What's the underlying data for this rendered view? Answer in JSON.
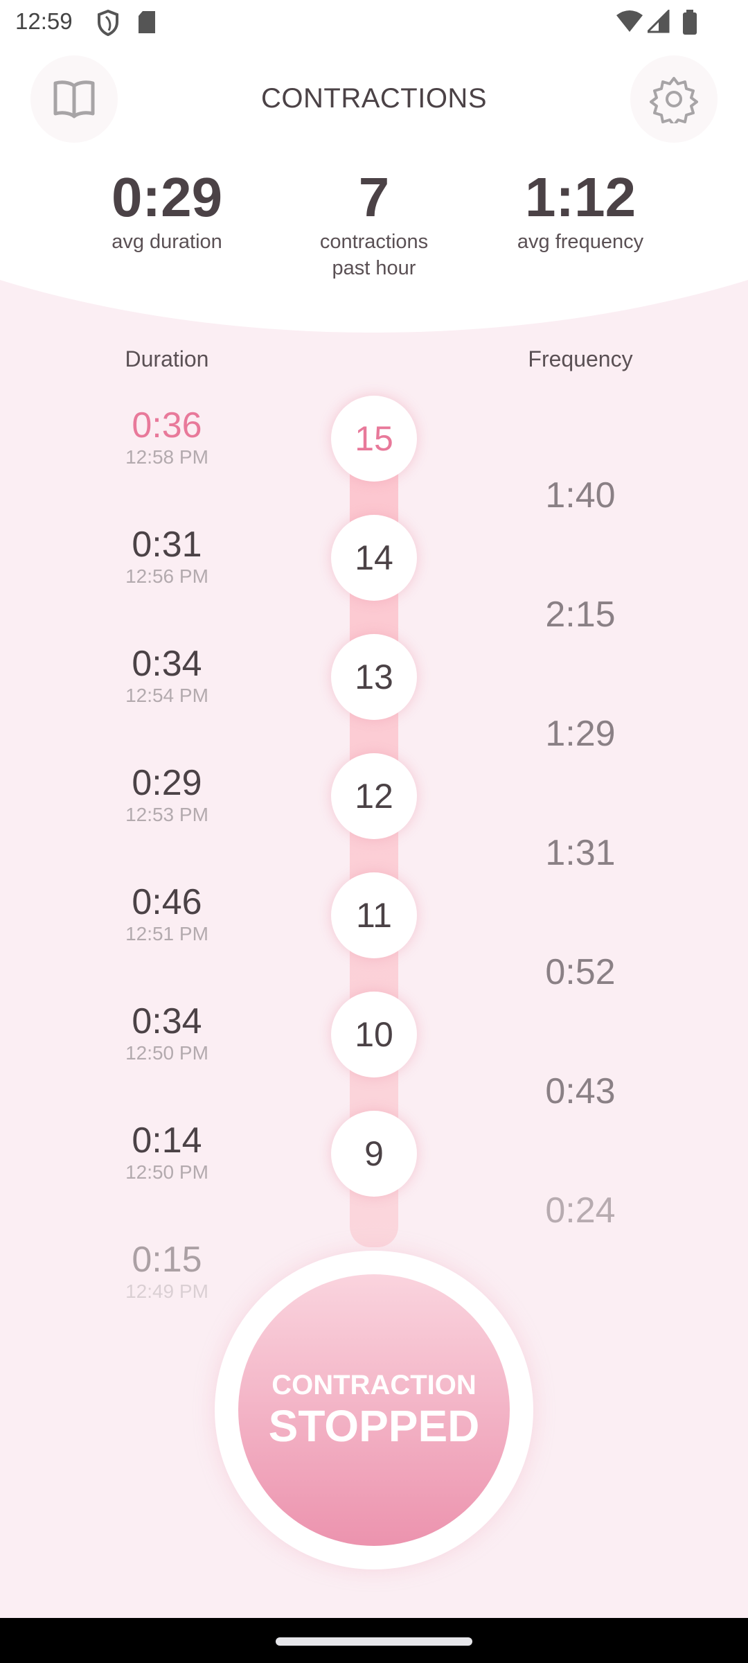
{
  "status_bar": {
    "time": "12:59",
    "icons": [
      "shield-icon",
      "sd-card-icon",
      "wifi-icon",
      "signal-icon",
      "battery-icon"
    ]
  },
  "header": {
    "title": "CONTRACTIONS",
    "left_icon": "book-icon",
    "right_icon": "gear-icon"
  },
  "stats": [
    {
      "value": "0:29",
      "label": "avg duration"
    },
    {
      "value": "7",
      "label": "contractions past hour"
    },
    {
      "value": "1:12",
      "label": "avg frequency"
    }
  ],
  "columns": {
    "duration": "Duration",
    "frequency": "Frequency"
  },
  "contractions": [
    {
      "number": "15",
      "duration": "0:36",
      "time": "12:58 PM",
      "frequency": "1:40",
      "highlight": true
    },
    {
      "number": "14",
      "duration": "0:31",
      "time": "12:56 PM",
      "frequency": "2:15"
    },
    {
      "number": "13",
      "duration": "0:34",
      "time": "12:54 PM",
      "frequency": "1:29"
    },
    {
      "number": "12",
      "duration": "0:29",
      "time": "12:53 PM",
      "frequency": "1:31"
    },
    {
      "number": "11",
      "duration": "0:46",
      "time": "12:51 PM",
      "frequency": "0:52"
    },
    {
      "number": "10",
      "duration": "0:34",
      "time": "12:50 PM",
      "frequency": "0:43"
    },
    {
      "number": "9",
      "duration": "0:14",
      "time": "12:50 PM",
      "frequency": "0:24"
    },
    {
      "number": "",
      "duration": "0:15",
      "time": "12:49 PM",
      "frequency": ""
    }
  ],
  "main_button": {
    "line1": "CONTRACTION",
    "line2": "STOPPED"
  },
  "colors": {
    "accent": "#e8799a",
    "background": "#fbeef3",
    "text": "#4b4246"
  }
}
